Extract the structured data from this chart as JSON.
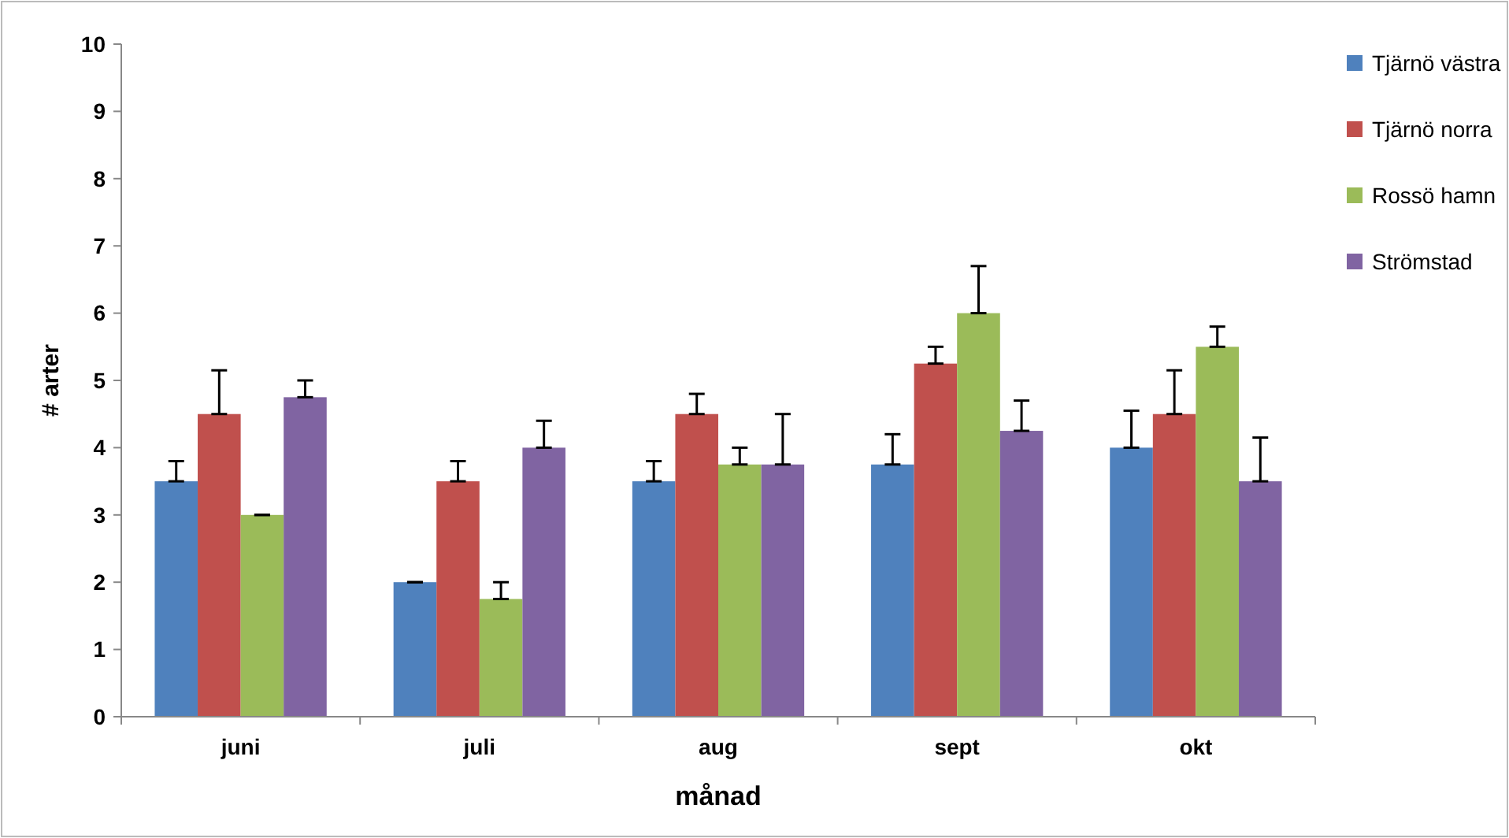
{
  "chart_data": {
    "type": "bar",
    "xlabel": "månad",
    "ylabel": "# arter",
    "categories": [
      "juni",
      "juli",
      "aug",
      "sept",
      "okt"
    ],
    "ylim": [
      0,
      10
    ],
    "yticks": [
      0,
      1,
      2,
      3,
      4,
      5,
      6,
      7,
      8,
      9,
      10
    ],
    "grid": false,
    "legend": "top right",
    "series": [
      {
        "name": "Tjärnö västra",
        "color": "#4f81bd",
        "values": [
          3.5,
          2,
          3.5,
          3.75,
          4
        ],
        "errors": [
          [
            3.5,
            3.8
          ],
          [
            2,
            2
          ],
          [
            3.5,
            3.8
          ],
          [
            3.75,
            4.2
          ],
          [
            4,
            4.55
          ]
        ]
      },
      {
        "name": "Tjärnö norra",
        "color": "#c0504d",
        "values": [
          4.5,
          3.5,
          4.5,
          5.25,
          4.5
        ],
        "errors": [
          [
            4.5,
            5.15
          ],
          [
            3.5,
            3.8
          ],
          [
            4.5,
            4.8
          ],
          [
            5.25,
            5.5
          ],
          [
            4.5,
            5.15
          ]
        ]
      },
      {
        "name": "Rossö hamn",
        "color": "#9bbb59",
        "values": [
          3,
          1.75,
          3.75,
          6,
          5.5
        ],
        "errors": [
          [
            3,
            3
          ],
          [
            1.75,
            2
          ],
          [
            3.75,
            4
          ],
          [
            6,
            6.7
          ],
          [
            5.5,
            5.8
          ]
        ]
      },
      {
        "name": "Strömstad",
        "color": "#8064a2",
        "values": [
          4.75,
          4,
          3.75,
          4.25,
          3.5
        ],
        "errors": [
          [
            4.75,
            5
          ],
          [
            4,
            4.4
          ],
          [
            3.75,
            4.5
          ],
          [
            4.25,
            4.7
          ],
          [
            3.5,
            4.15
          ]
        ]
      }
    ]
  }
}
